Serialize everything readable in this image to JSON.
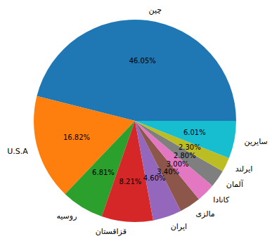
{
  "chart_data": {
    "type": "pie",
    "categories": [
      "چین",
      "U.S.A",
      "روسیه",
      "قزاقستان",
      "ایران",
      "مالزی",
      "کانادا",
      "آلمان",
      "ایرلند",
      "سایرین"
    ],
    "values": [
      46.05,
      16.82,
      6.81,
      8.21,
      4.6,
      3.4,
      3.0,
      2.8,
      2.3,
      6.01
    ],
    "value_labels": [
      "46.05%",
      "16.82%",
      "6.81%",
      "8.21%",
      "4.60%",
      "3.40%",
      "3.00%",
      "2.80%",
      "2.30%",
      "6.01%"
    ],
    "colors": [
      "#1f77b4",
      "#ff7f0e",
      "#2ca02c",
      "#d62728",
      "#9467bd",
      "#8c564b",
      "#e377c2",
      "#7f7f7f",
      "#bcbd22",
      "#17becf"
    ],
    "data_labels": true
  }
}
